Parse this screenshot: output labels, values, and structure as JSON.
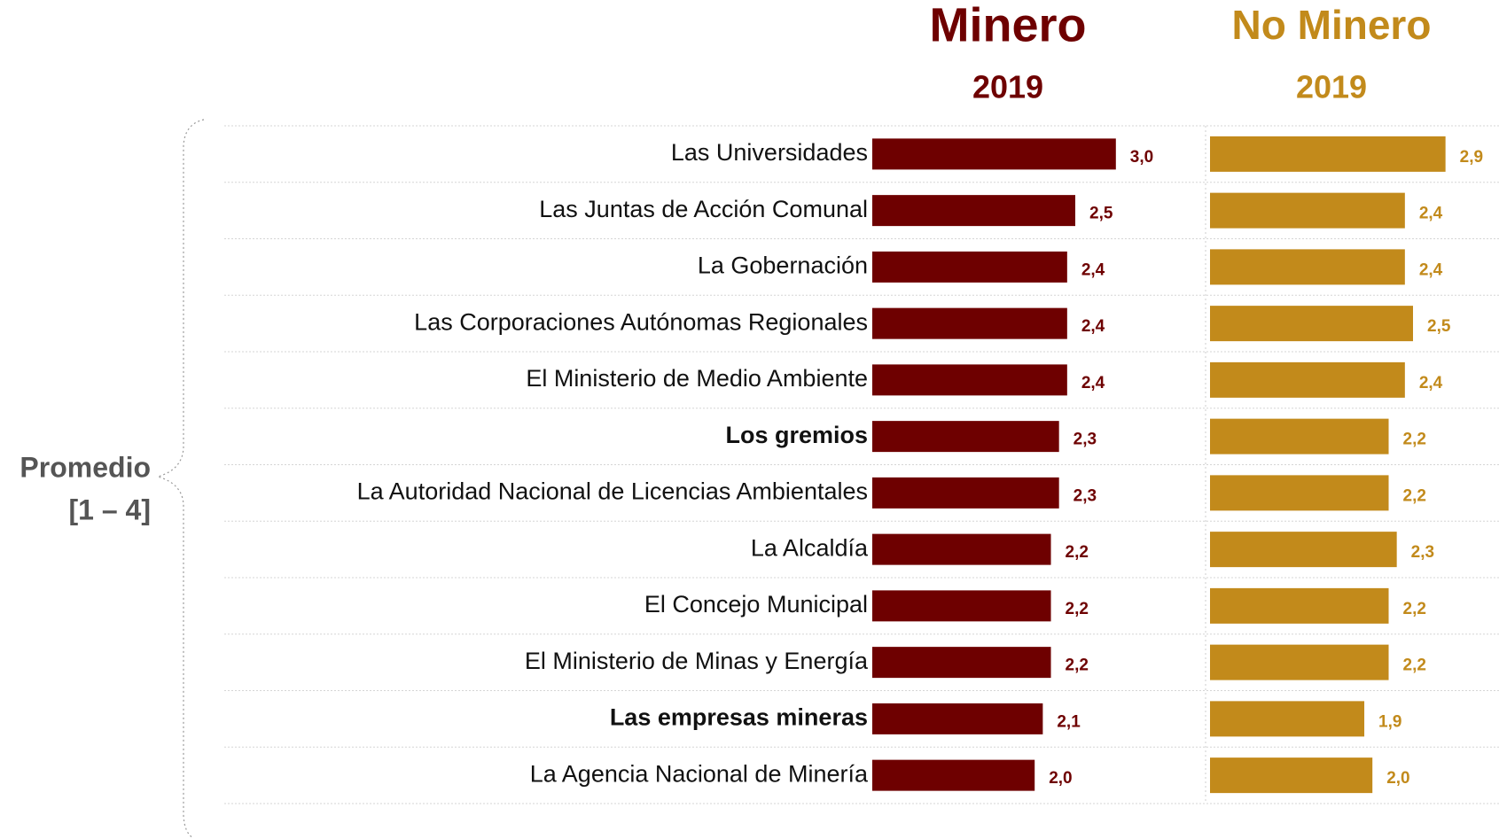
{
  "chart_data": {
    "type": "bar",
    "orientation": "horizontal",
    "axis_label": [
      "Promedio",
      "[1 – 4]"
    ],
    "categories": [
      "Las Universidades",
      "Las Juntas de Acción Comunal",
      "La Gobernación",
      "Las Corporaciones Autónomas Regionales",
      "El Ministerio de Medio Ambiente",
      "Los gremios",
      "La Autoridad Nacional de Licencias Ambientales",
      "La Alcaldía",
      "El Concejo Municipal",
      "El Ministerio de Minas y Energía",
      "Las empresas mineras",
      "La Agencia Nacional de Minería"
    ],
    "xlim": [
      0,
      4
    ],
    "series": [
      {
        "name": "Minero",
        "year": "2019",
        "color": "#6e0000",
        "values": [
          3.0,
          2.5,
          2.4,
          2.4,
          2.4,
          2.3,
          2.3,
          2.2,
          2.2,
          2.2,
          2.1,
          2.0
        ],
        "value_labels": [
          "3,0",
          "2,5",
          "2,4",
          "2,4",
          "2,4",
          "2,3",
          "2,3",
          "2,2",
          "2,2",
          "2,2",
          "2,1",
          "2,0"
        ]
      },
      {
        "name": "No Minero",
        "year": "2019",
        "color": "#c28a1b",
        "values": [
          2.9,
          2.4,
          2.4,
          2.5,
          2.4,
          2.2,
          2.2,
          2.3,
          2.2,
          2.2,
          1.9,
          2.0
        ],
        "value_labels": [
          "2,9",
          "2,4",
          "2,4",
          "2,5",
          "2,4",
          "2,2",
          "2,2",
          "2,3",
          "2,2",
          "2,2",
          "1,9",
          "2,0"
        ]
      }
    ]
  }
}
